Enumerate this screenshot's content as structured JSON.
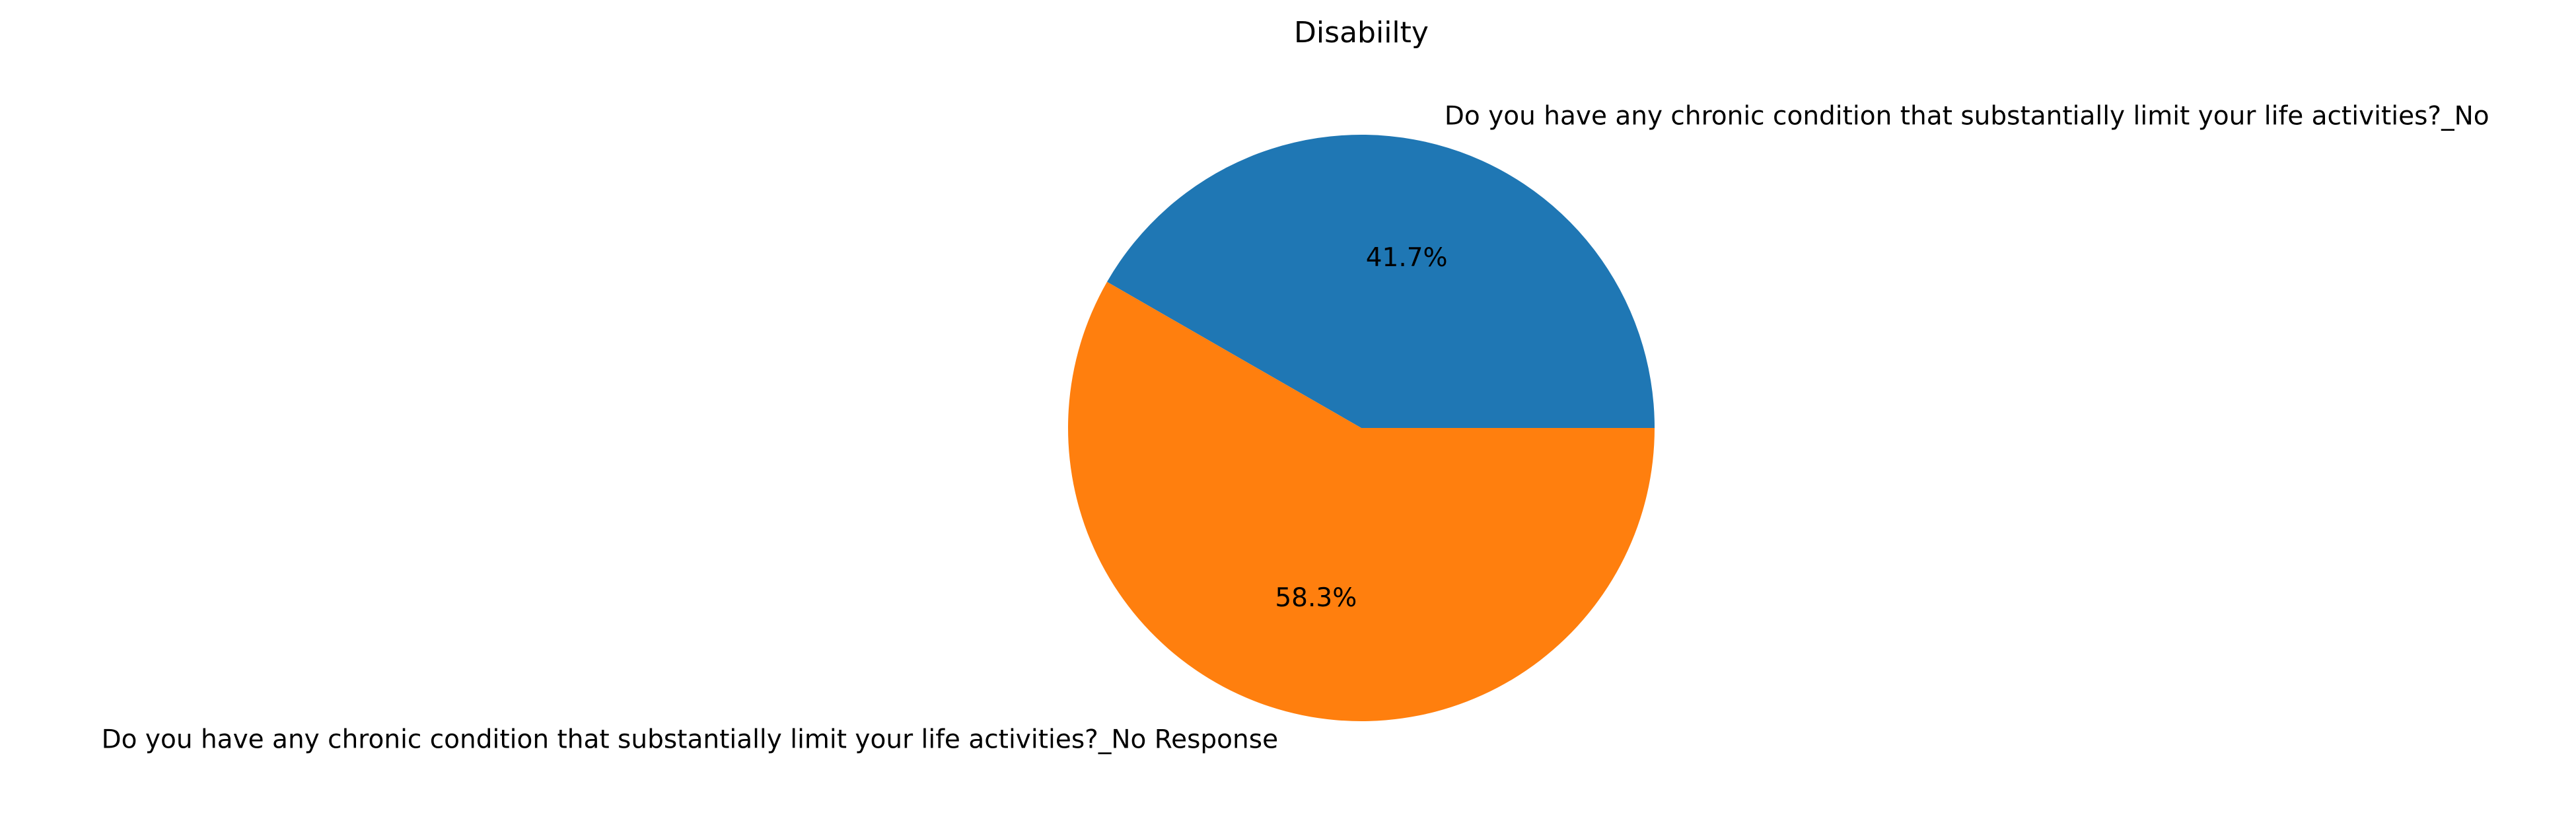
{
  "chart_data": {
    "type": "pie",
    "title": "Disabiilty",
    "slices": [
      {
        "label": "Do you have any chronic condition that substantially limit your life activities?_No",
        "value": 41.7,
        "pct_label": "41.7%",
        "color": "#1f77b4"
      },
      {
        "label": "Do you have any chronic condition that substantially limit your life activities?_No Response",
        "value": 58.3,
        "pct_label": "58.3%",
        "color": "#ff7f0e"
      }
    ],
    "start_angle_deg": 0,
    "direction": "counterclockwise",
    "legend": "none"
  }
}
